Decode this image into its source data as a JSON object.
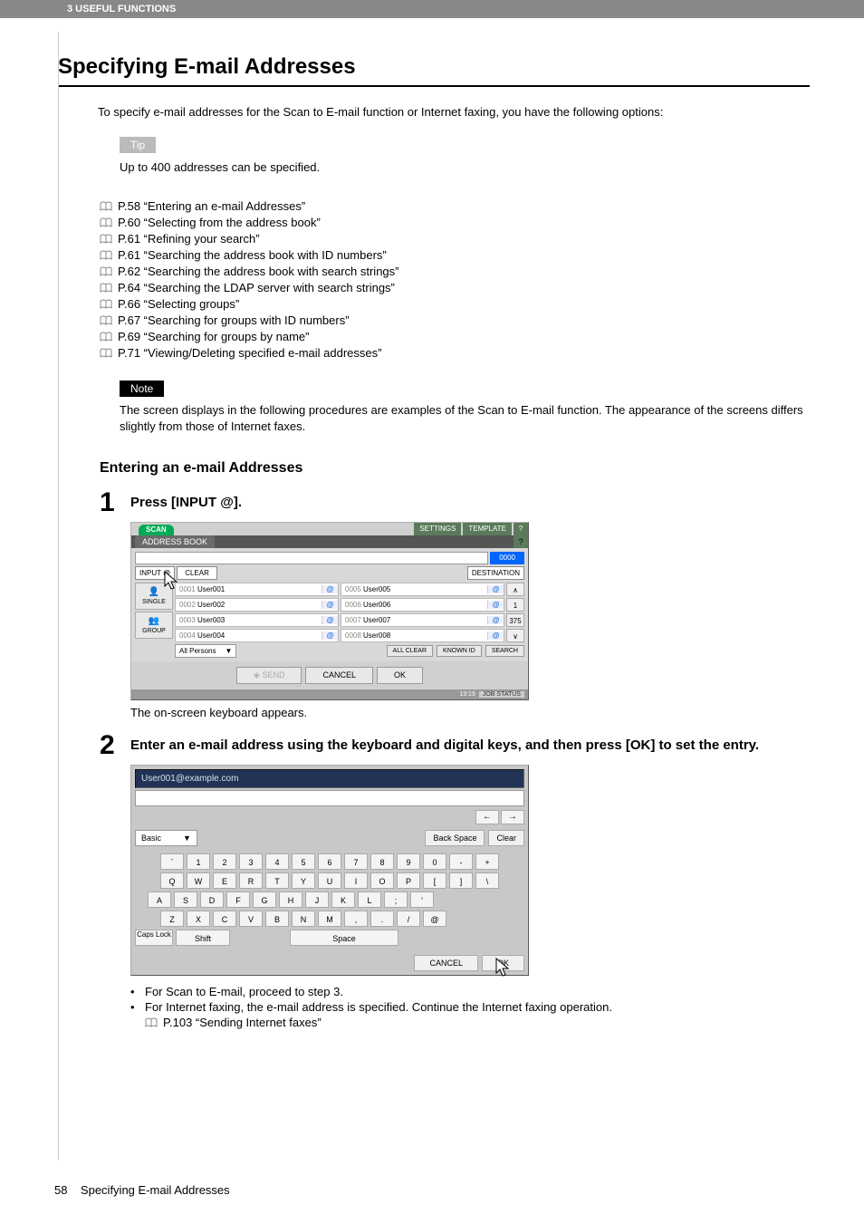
{
  "header": {
    "band": "3 USEFUL FUNCTIONS"
  },
  "title": "Specifying E-mail Addresses",
  "intro": "To specify e-mail addresses for the Scan to E-mail function or Internet faxing, you have the following options:",
  "tip": {
    "label": "Tip",
    "text": "Up to 400 addresses can be specified."
  },
  "links": [
    "P.58 “Entering an e-mail Addresses”",
    "P.60 “Selecting from the address book”",
    "P.61 “Refining your search”",
    "P.61 “Searching the address book with ID numbers”",
    "P.62 “Searching the address book with search strings”",
    "P.64 “Searching the LDAP server with search strings”",
    "P.66 “Selecting groups”",
    "P.67 “Searching for groups with ID numbers”",
    "P.69 “Searching for groups by name”",
    "P.71 “Viewing/Deleting specified e-mail addresses”"
  ],
  "note": {
    "label": "Note",
    "text": "The screen displays in the following procedures are examples of the Scan to E-mail function. The appearance of the screens differs slightly from those of Internet faxes."
  },
  "subheading": "Entering an e-mail Addresses",
  "step1": {
    "num": "1",
    "text": "Press [INPUT @].",
    "after": "The on-screen keyboard appears."
  },
  "step2": {
    "num": "2",
    "text": "Enter an e-mail address using the keyboard and digital keys, and then press [OK] to set the entry."
  },
  "bullets": [
    "For Scan to E-mail, proceed to step 3.",
    "For Internet faxing, the e-mail address is specified. Continue the Internet faxing operation."
  ],
  "bullet_link": "P.103 “Sending Internet faxes”",
  "footer": {
    "page": "58",
    "title": "Specifying E-mail Addresses"
  },
  "fig1": {
    "scan": "SCAN",
    "settings": "SETTINGS",
    "template": "TEMPLATE",
    "help": "?",
    "tab": "ADDRESS BOOK",
    "count": "0000",
    "input_at": "INPUT @",
    "clear": "CLEAR",
    "destination": "DESTINATION",
    "side_single": "SINGLE",
    "side_group": "GROUP",
    "list_left": [
      {
        "id": "0001",
        "name": "User001"
      },
      {
        "id": "0002",
        "name": "User002"
      },
      {
        "id": "0003",
        "name": "User003"
      },
      {
        "id": "0004",
        "name": "User004"
      }
    ],
    "list_right": [
      {
        "id": "0005",
        "name": "User005"
      },
      {
        "id": "0006",
        "name": "User006"
      },
      {
        "id": "0007",
        "name": "User007"
      },
      {
        "id": "0008",
        "name": "User008"
      }
    ],
    "scroll": {
      "up": "∧",
      "n1": "1",
      "n2": "375",
      "dn": "∨"
    },
    "dd": "All Persons",
    "allclear": "ALL CLEAR",
    "knownid": "KNOWN ID",
    "search": "SEARCH",
    "send": "SEND",
    "cancel": "CANCEL",
    "ok": "OK",
    "time": "13:19",
    "jobstatus": "JOB STATUS"
  },
  "fig2": {
    "input": "User001@example.com",
    "basic": "Basic",
    "nav_l": "←",
    "nav_r": "→",
    "backspace": "Back Space",
    "clear": "Clear",
    "rows": {
      "r1": [
        "`",
        "1",
        "2",
        "3",
        "4",
        "5",
        "6",
        "7",
        "8",
        "9",
        "0",
        "-",
        "+"
      ],
      "r2": [
        "Q",
        "W",
        "E",
        "R",
        "T",
        "Y",
        "U",
        "I",
        "O",
        "P",
        "[",
        "]",
        "\\"
      ],
      "r3": [
        "A",
        "S",
        "D",
        "F",
        "G",
        "H",
        "J",
        "K",
        "L",
        ";",
        "'"
      ],
      "r4": [
        "Z",
        "X",
        "C",
        "V",
        "B",
        "N",
        "M",
        ",",
        ".",
        "/",
        "@"
      ]
    },
    "caps": "Caps Lock",
    "shift": "Shift",
    "space": "Space",
    "cancel": "CANCEL",
    "ok": "OK"
  }
}
